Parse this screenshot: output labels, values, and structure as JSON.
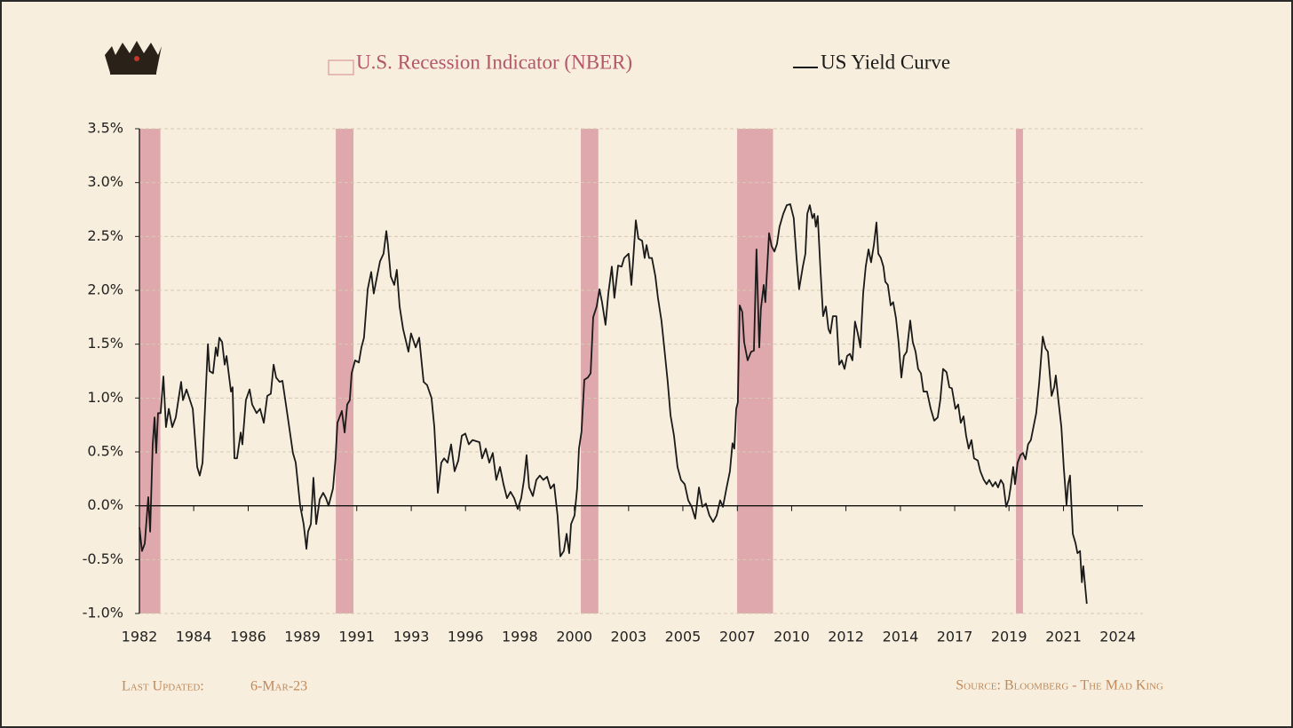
{
  "chart_data": {
    "type": "line",
    "xlim": [
      1982,
      2025.08
    ],
    "xticks": [
      1982,
      {
        "value": 1984.33,
        "label": "1984"
      },
      {
        "value": 1986.67,
        "label": "1986"
      },
      1989,
      {
        "value": 1991.33,
        "label": "1991"
      },
      {
        "value": 1993.67,
        "label": "1993"
      },
      1996,
      {
        "value": 1998.33,
        "label": "1998"
      },
      {
        "value": 2000.67,
        "label": "2000"
      },
      2003,
      {
        "value": 2005.33,
        "label": "2005"
      },
      {
        "value": 2007.67,
        "label": "2007"
      },
      2010,
      {
        "value": 2012.33,
        "label": "2012"
      },
      {
        "value": 2014.67,
        "label": "2014"
      },
      2017,
      {
        "value": 2019.33,
        "label": "2019"
      },
      {
        "value": 2021.67,
        "label": "2021"
      },
      2024
    ],
    "ylim": [
      -1,
      3.5
    ],
    "yticks": [
      {
        "value": -1,
        "label": "-1.0%"
      },
      {
        "value": -0.5,
        "label": "-0.5%"
      },
      {
        "value": 0,
        "label": "0.0%"
      },
      {
        "value": 0.5,
        "label": "0.5%"
      },
      {
        "value": 1,
        "label": "1.0%"
      },
      {
        "value": 1.5,
        "label": "1.5%"
      },
      {
        "value": 2,
        "label": "2.0%"
      },
      {
        "value": 2.5,
        "label": "2.5%"
      },
      {
        "value": 3,
        "label": "3.0%"
      },
      {
        "value": 3.5,
        "label": "3.5%"
      }
    ],
    "grid": true,
    "series": [
      {
        "name": "U.S. Recession Indicator (NBER)",
        "type": "band",
        "color": "#dfa8ac",
        "periods": [
          [
            1982.0,
            1982.9
          ],
          [
            1990.43,
            1991.19
          ],
          [
            2000.95,
            2001.7
          ],
          [
            2007.66,
            2009.2
          ],
          [
            2019.63,
            2019.93
          ]
        ]
      },
      {
        "name": "US Yield Curve",
        "type": "line",
        "color": "#1a1a1a",
        "x": [
          1982.0,
          1982.11,
          1982.23,
          1982.38,
          1982.46,
          1982.57,
          1982.65,
          1982.72,
          1982.8,
          1982.91,
          1983.03,
          1983.14,
          1983.26,
          1983.41,
          1983.56,
          1983.79,
          1983.87,
          1984.02,
          1984.29,
          1984.48,
          1984.59,
          1984.71,
          1984.94,
          1985.01,
          1985.16,
          1985.28,
          1985.35,
          1985.43,
          1985.55,
          1985.66,
          1985.74,
          1985.93,
          1986.0,
          1986.08,
          1986.19,
          1986.35,
          1986.42,
          1986.57,
          1986.73,
          1986.84,
          1987.03,
          1987.18,
          1987.34,
          1987.49,
          1987.64,
          1987.76,
          1987.87,
          1988.02,
          1988.14,
          1988.37,
          1988.59,
          1988.71,
          1988.9,
          1989.05,
          1989.17,
          1989.24,
          1989.36,
          1989.47,
          1989.59,
          1989.74,
          1989.89,
          1990.01,
          1990.12,
          1990.31,
          1990.42,
          1990.5,
          1990.69,
          1990.81,
          1990.92,
          1991.03,
          1991.11,
          1991.26,
          1991.42,
          1991.53,
          1991.64,
          1991.8,
          1991.95,
          1992.06,
          1992.22,
          1992.33,
          1992.48,
          1992.6,
          1992.67,
          1992.79,
          1992.94,
          1993.05,
          1993.17,
          1993.32,
          1993.55,
          1993.66,
          1993.86,
          1994.01,
          1994.2,
          1994.35,
          1994.54,
          1994.66,
          1994.81,
          1994.96,
          1995.08,
          1995.23,
          1995.38,
          1995.53,
          1995.69,
          1995.84,
          1995.99,
          1996.14,
          1996.3,
          1996.6,
          1996.71,
          1996.87,
          1997.02,
          1997.17,
          1997.32,
          1997.48,
          1997.63,
          1997.78,
          1997.93,
          1998.09,
          1998.24,
          1998.39,
          1998.51,
          1998.62,
          1998.73,
          1998.89,
          1999.04,
          1999.19,
          1999.34,
          1999.5,
          1999.65,
          1999.8,
          1999.95,
          2000.07,
          2000.22,
          2000.34,
          2000.45,
          2000.53,
          2000.68,
          2000.79,
          2000.87,
          2000.98,
          2001.1,
          2001.25,
          2001.37,
          2001.48,
          2001.63,
          2001.75,
          2001.86,
          2002.01,
          2002.13,
          2002.28,
          2002.39,
          2002.55,
          2002.7,
          2002.81,
          2003.0,
          2003.12,
          2003.19,
          2003.31,
          2003.42,
          2003.58,
          2003.69,
          2003.77,
          2003.88,
          2004.0,
          2004.15,
          2004.26,
          2004.41,
          2004.53,
          2004.68,
          2004.8,
          2004.95,
          2005.1,
          2005.25,
          2005.41,
          2005.56,
          2005.71,
          2005.86,
          2006.02,
          2006.17,
          2006.32,
          2006.47,
          2006.63,
          2006.78,
          2006.93,
          2007.05,
          2007.2,
          2007.35,
          2007.46,
          2007.54,
          2007.62,
          2007.69,
          2007.77,
          2007.88,
          2007.96,
          2008.11,
          2008.26,
          2008.38,
          2008.49,
          2008.61,
          2008.68,
          2008.8,
          2008.87,
          2009.03,
          2009.14,
          2009.26,
          2009.37,
          2009.48,
          2009.64,
          2009.79,
          2009.94,
          2010.09,
          2010.21,
          2010.32,
          2010.48,
          2010.59,
          2010.67,
          2010.78,
          2010.89,
          2010.97,
          2011.04,
          2011.12,
          2011.23,
          2011.35,
          2011.47,
          2011.58,
          2011.66,
          2011.77,
          2011.92,
          2012.04,
          2012.15,
          2012.27,
          2012.38,
          2012.5,
          2012.61,
          2012.72,
          2012.84,
          2012.95,
          2013.07,
          2013.18,
          2013.3,
          2013.41,
          2013.53,
          2013.64,
          2013.72,
          2013.83,
          2013.94,
          2014.02,
          2014.13,
          2014.25,
          2014.36,
          2014.48,
          2014.59,
          2014.71,
          2014.82,
          2014.94,
          2015.09,
          2015.2,
          2015.32,
          2015.43,
          2015.55,
          2015.66,
          2015.81,
          2015.97,
          2016.12,
          2016.27,
          2016.38,
          2016.5,
          2016.65,
          2016.77,
          2016.88,
          2017.03,
          2017.15,
          2017.26,
          2017.38,
          2017.49,
          2017.6,
          2017.72,
          2017.83,
          2017.99,
          2018.1,
          2018.25,
          2018.37,
          2018.48,
          2018.63,
          2018.75,
          2018.86,
          2018.98,
          2019.09,
          2019.21,
          2019.32,
          2019.4,
          2019.51,
          2019.59,
          2019.7,
          2019.82,
          2019.93,
          2020.04,
          2020.15,
          2020.27,
          2020.38,
          2020.5,
          2020.63,
          2020.78,
          2020.9,
          2021.0,
          2021.16,
          2021.27,
          2021.34,
          2021.45,
          2021.58,
          2021.68,
          2021.8,
          2021.87,
          2021.95,
          2022.07,
          2022.19,
          2022.27,
          2022.38,
          2022.46,
          2022.52,
          2022.67
        ],
        "values": [
          -0.2,
          -0.42,
          -0.35,
          0.08,
          -0.24,
          0.57,
          0.82,
          0.49,
          0.86,
          0.86,
          1.2,
          0.73,
          0.9,
          0.73,
          0.82,
          1.15,
          0.98,
          1.08,
          0.9,
          0.36,
          0.28,
          0.4,
          1.5,
          1.25,
          1.23,
          1.47,
          1.39,
          1.56,
          1.52,
          1.31,
          1.39,
          1.06,
          1.1,
          0.44,
          0.44,
          0.68,
          0.57,
          0.98,
          1.08,
          0.94,
          0.86,
          0.9,
          0.77,
          1.02,
          1.04,
          1.31,
          1.19,
          1.15,
          1.16,
          0.82,
          0.49,
          0.4,
          0.0,
          -0.17,
          -0.4,
          -0.24,
          -0.17,
          0.26,
          -0.17,
          0.06,
          0.12,
          0.07,
          0.0,
          0.16,
          0.44,
          0.77,
          0.88,
          0.68,
          0.94,
          0.98,
          1.23,
          1.35,
          1.33,
          1.47,
          1.56,
          2.01,
          2.17,
          1.97,
          2.15,
          2.27,
          2.34,
          2.55,
          2.42,
          2.13,
          2.05,
          2.19,
          1.85,
          1.64,
          1.43,
          1.6,
          1.47,
          1.56,
          1.15,
          1.12,
          1.0,
          0.73,
          0.12,
          0.4,
          0.44,
          0.4,
          0.57,
          0.32,
          0.42,
          0.65,
          0.67,
          0.57,
          0.61,
          0.59,
          0.44,
          0.53,
          0.4,
          0.49,
          0.24,
          0.36,
          0.2,
          0.07,
          0.13,
          0.07,
          -0.03,
          0.07,
          0.24,
          0.47,
          0.17,
          0.09,
          0.24,
          0.28,
          0.24,
          0.27,
          0.16,
          0.2,
          -0.09,
          -0.47,
          -0.42,
          -0.26,
          -0.44,
          -0.17,
          -0.09,
          0.16,
          0.53,
          0.69,
          1.17,
          1.19,
          1.23,
          1.75,
          1.85,
          2.01,
          1.89,
          1.68,
          1.97,
          2.22,
          1.93,
          2.23,
          2.22,
          2.3,
          2.34,
          2.05,
          2.26,
          2.65,
          2.48,
          2.46,
          2.3,
          2.42,
          2.3,
          2.3,
          2.13,
          1.93,
          1.72,
          1.47,
          1.15,
          0.84,
          0.65,
          0.36,
          0.24,
          0.2,
          0.05,
          -0.01,
          -0.12,
          0.17,
          -0.01,
          0.02,
          -0.09,
          -0.15,
          -0.09,
          0.05,
          -0.01,
          0.16,
          0.32,
          0.58,
          0.53,
          0.9,
          0.96,
          1.86,
          1.8,
          1.52,
          1.35,
          1.43,
          1.44,
          2.38,
          1.47,
          1.83,
          2.05,
          1.89,
          2.53,
          2.41,
          2.36,
          2.43,
          2.59,
          2.71,
          2.79,
          2.8,
          2.67,
          2.3,
          2.01,
          2.22,
          2.34,
          2.71,
          2.79,
          2.67,
          2.71,
          2.59,
          2.69,
          2.22,
          1.76,
          1.85,
          1.64,
          1.6,
          1.76,
          1.76,
          1.31,
          1.35,
          1.27,
          1.39,
          1.41,
          1.35,
          1.71,
          1.6,
          1.47,
          1.97,
          2.22,
          2.38,
          2.26,
          2.42,
          2.63,
          2.34,
          2.3,
          2.22,
          2.08,
          2.05,
          1.86,
          1.89,
          1.74,
          1.52,
          1.19,
          1.39,
          1.43,
          1.72,
          1.52,
          1.43,
          1.27,
          1.23,
          1.06,
          1.06,
          0.9,
          0.79,
          0.82,
          0.98,
          1.27,
          1.24,
          1.1,
          1.09,
          0.9,
          0.94,
          0.77,
          0.83,
          0.65,
          0.53,
          0.61,
          0.44,
          0.42,
          0.32,
          0.24,
          0.2,
          0.24,
          0.18,
          0.22,
          0.17,
          0.24,
          0.2,
          -0.01,
          0.06,
          0.17,
          0.36,
          0.2,
          0.4,
          0.47,
          0.49,
          0.43,
          0.57,
          0.61,
          0.73,
          0.86,
          1.15,
          1.57,
          1.46,
          1.43,
          1.02,
          1.1,
          1.21,
          0.98,
          0.73,
          0.36,
          0.01,
          0.2,
          0.28,
          -0.26,
          -0.35,
          -0.44,
          -0.42,
          -0.71,
          -0.56,
          -0.91
        ]
      }
    ],
    "footer": {
      "updated_label": "Last Updated:",
      "updated_date": "6-Mar-23",
      "source": "Source: Bloomberg - The Mad King"
    }
  }
}
